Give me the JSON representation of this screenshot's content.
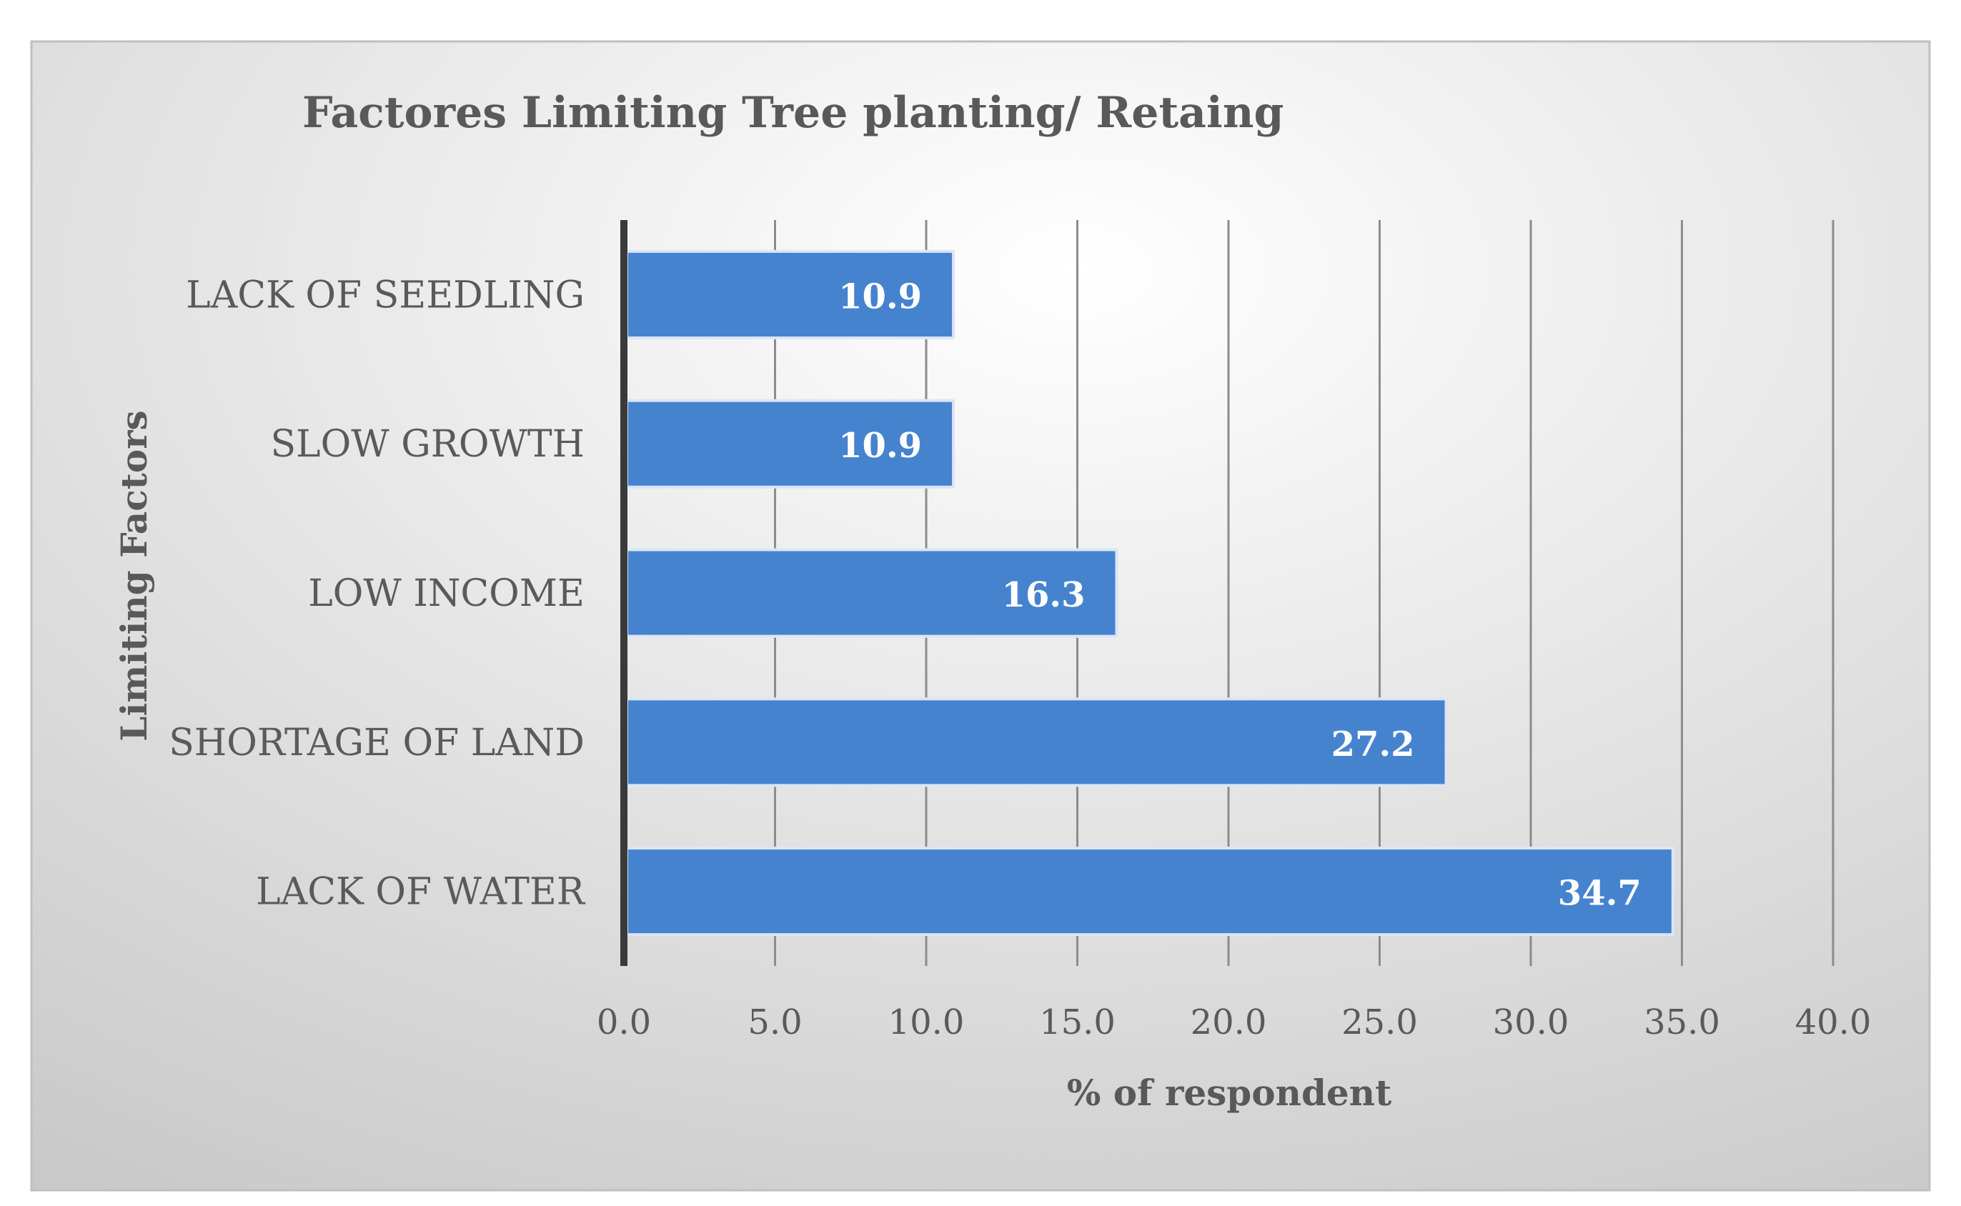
{
  "chart_data": {
    "type": "bar",
    "orientation": "horizontal",
    "title": "Factores Limiting Tree planting/ Retaing",
    "xlabel": "% of respondent",
    "ylabel": "Limiting Factors",
    "categories": [
      "LACK OF SEEDLING",
      "SLOW GROWTH",
      "LOW INCOME",
      "SHORTAGE OF LAND",
      "LACK OF WATER"
    ],
    "values": [
      10.9,
      10.9,
      16.3,
      27.2,
      34.7
    ],
    "data_labels": [
      "10.9",
      "10.9",
      "16.3",
      "27.2",
      "34.7"
    ],
    "xlim": [
      0,
      40
    ],
    "x_ticks": [
      0,
      5,
      10,
      15,
      20,
      25,
      30,
      35,
      40
    ],
    "x_tick_labels": [
      "0.0",
      "5.0",
      "10.0",
      "15.0",
      "20.0",
      "25.0",
      "30.0",
      "35.0",
      "40.0"
    ],
    "grid": "vertical",
    "legend": "none",
    "colors": {
      "bar": "#4683cf",
      "bar_edge": "#dbe6f5",
      "panel_light": "#ffffff",
      "panel_dark": "#c9c9c9",
      "gridline": "#8c8c8c",
      "axis_line": "#3a3a3a",
      "text": "#5a5a5a",
      "label_text": "#ffffff"
    }
  }
}
